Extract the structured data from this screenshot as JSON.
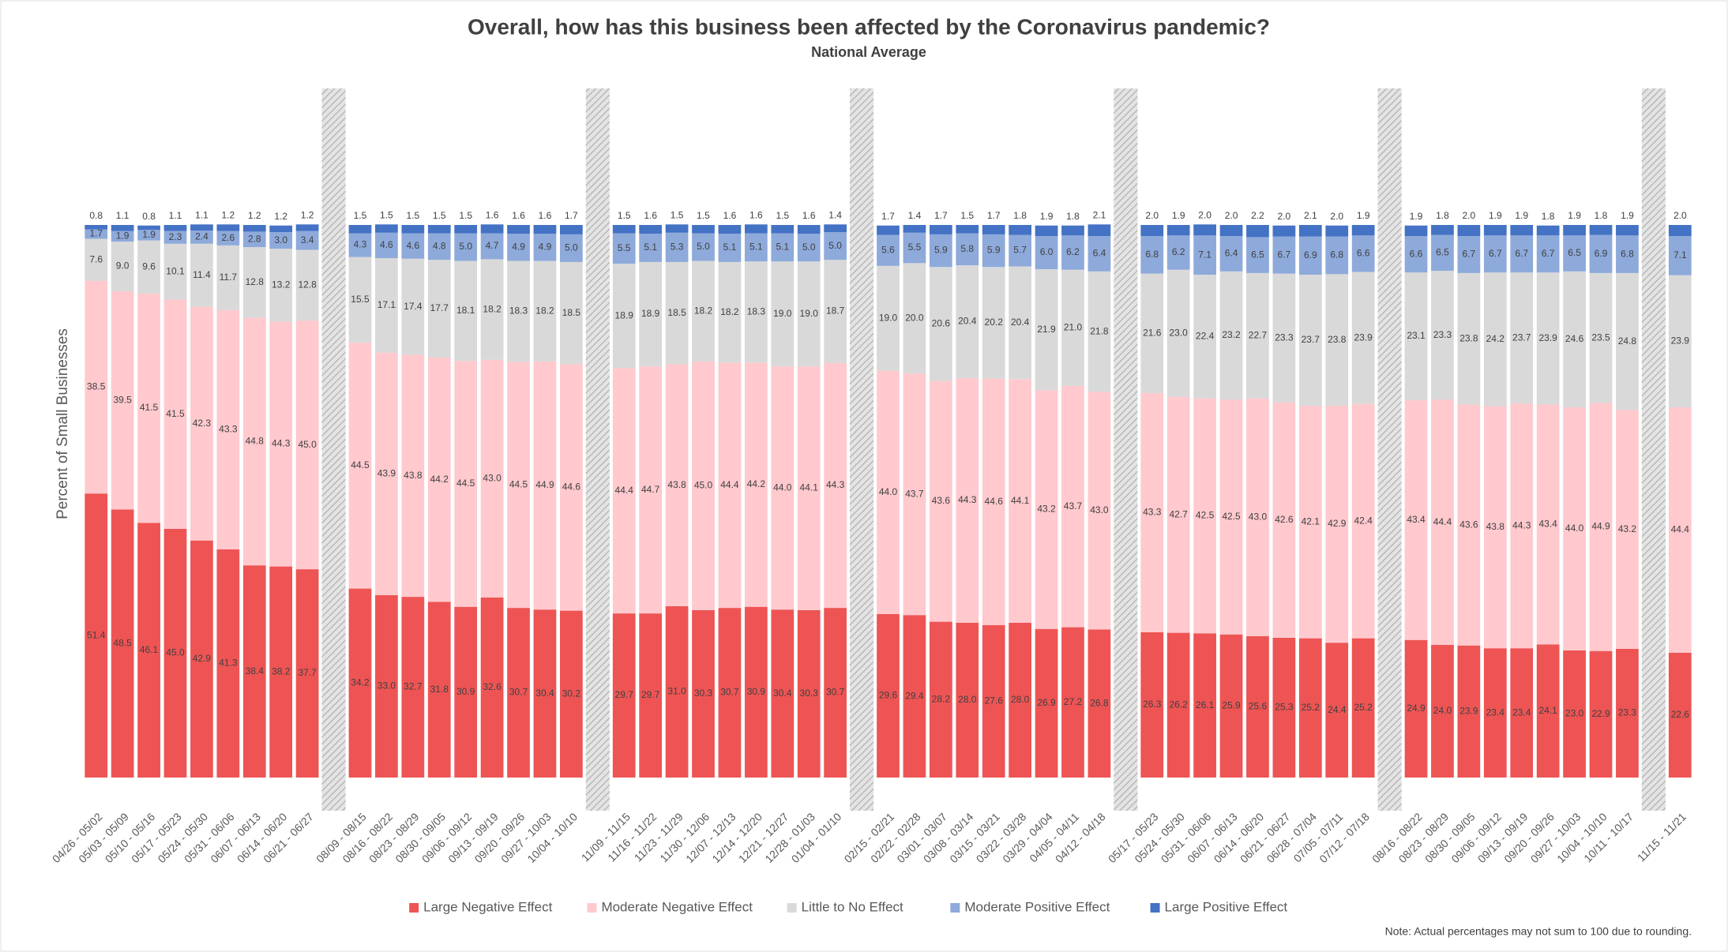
{
  "chart_data": {
    "type": "bar",
    "stacked": true,
    "title": "Overall, how has this business been affected by the Coronavirus pandemic?",
    "subtitle": "National Average",
    "ylabel": "Percent of Small Businesses",
    "note": "Note: Actual percentages may not sum to 100 due to rounding.",
    "ylim": [
      0,
      100
    ],
    "legend": "bottom",
    "categories": [
      "04/26 - 05/02",
      "05/03 - 05/09",
      "05/10 - 05/16",
      "05/17 - 05/23",
      "05/24 - 05/30",
      "05/31 - 06/06",
      "06/07 - 06/13",
      "06/14 - 06/20",
      "06/21 - 06/27",
      null,
      "08/09 - 08/15",
      "08/16 - 08/22",
      "08/23 - 08/29",
      "08/30 - 09/05",
      "09/06 - 09/12",
      "09/13 - 09/19",
      "09/20 - 09/26",
      "09/27 - 10/03",
      "10/04 - 10/10",
      null,
      "11/09 - 11/15",
      "11/16 - 11/22",
      "11/23 - 11/29",
      "11/30 - 12/06",
      "12/07 - 12/13",
      "12/14 - 12/20",
      "12/21 - 12/27",
      "12/28 - 01/03",
      "01/04 - 01/10",
      null,
      "02/15 - 02/21",
      "02/22 - 02/28",
      "03/01 - 03/07",
      "03/08 - 03/14",
      "03/15 - 03/21",
      "03/22 - 03/28",
      "03/29 - 04/04",
      "04/05 - 04/11",
      "04/12 - 04/18",
      null,
      "05/17 - 05/23",
      "05/24 - 05/30",
      "05/31 - 06/06",
      "06/07 - 06/13",
      "06/14 - 06/20",
      "06/21 - 06/27",
      "06/28 - 07/04",
      "07/05 - 07/11",
      "07/12 - 07/18",
      null,
      "08/16 - 08/22",
      "08/23 - 08/29",
      "08/30 - 09/05",
      "09/06 - 09/12",
      "09/13 - 09/19",
      "09/20 - 09/26",
      "09/27 - 10/03",
      "10/04 - 10/10",
      "10/11 - 10/17",
      null,
      "11/15 - 11/21"
    ],
    "series": [
      {
        "name": "Large Negative Effect",
        "color": "#ee5454",
        "values": [
          51.4,
          48.5,
          46.1,
          45.0,
          42.9,
          41.3,
          38.4,
          38.2,
          37.7,
          null,
          34.2,
          33.0,
          32.7,
          31.8,
          30.9,
          32.6,
          30.7,
          30.4,
          30.2,
          null,
          29.7,
          29.7,
          31.0,
          30.3,
          30.7,
          30.9,
          30.4,
          30.3,
          30.7,
          null,
          29.6,
          29.4,
          28.2,
          28.0,
          27.6,
          28.0,
          26.9,
          27.2,
          26.8,
          null,
          26.3,
          26.2,
          26.1,
          25.9,
          25.6,
          25.3,
          25.2,
          24.4,
          25.2,
          null,
          24.9,
          24.0,
          23.9,
          23.4,
          23.4,
          24.1,
          23.0,
          22.9,
          23.3,
          null,
          22.6
        ],
        "value_labels": [
          "51.4",
          "48.5",
          "46.1",
          "45.0",
          "42.9",
          "41.3",
          "38.4",
          "38.2",
          "37.7",
          null,
          "34.2",
          "33.0",
          "32.7",
          "31.8",
          "30.9",
          "32.6",
          "30.7",
          "30.4",
          "30.2",
          null,
          "29.7",
          "29.7",
          "31.0",
          "30.3",
          "30.7",
          "30.9",
          "30.4",
          "30.3",
          "30.7",
          null,
          "29.6",
          "29.4",
          "28.2",
          "28.0",
          "27.6",
          "28.0",
          "26.9",
          "27.2",
          "26.8",
          null,
          "26.3",
          "26.2",
          "26.1",
          "25.9",
          "25.6",
          "25.3",
          "25.2",
          "24.4",
          "25.2",
          null,
          "24.9",
          "24.0",
          "23.9",
          "23.4",
          "23.4",
          "24.1",
          "23.0",
          "22.9",
          "23.3",
          null,
          "22.6"
        ]
      },
      {
        "name": "Moderate Negative Effect",
        "color": "#ffc9ce",
        "values": [
          38.5,
          39.5,
          41.5,
          41.5,
          42.3,
          43.3,
          44.8,
          44.3,
          45.0,
          null,
          44.5,
          43.9,
          43.8,
          44.2,
          44.5,
          43.0,
          44.5,
          44.9,
          44.6,
          null,
          44.4,
          44.7,
          43.8,
          45.0,
          44.4,
          44.2,
          44.0,
          44.1,
          44.3,
          null,
          44.0,
          43.7,
          43.6,
          44.3,
          44.6,
          44.1,
          43.2,
          43.7,
          43.0,
          null,
          43.3,
          42.7,
          42.5,
          42.5,
          43.0,
          42.6,
          42.1,
          42.9,
          42.4,
          null,
          43.4,
          44.4,
          43.6,
          43.8,
          44.3,
          43.4,
          44.0,
          44.9,
          43.2,
          null,
          44.4
        ],
        "value_labels": [
          "38.5",
          "39.5",
          "41.5",
          "41.5",
          "42.3",
          "43.3",
          "44.8",
          "44.3",
          "45.0",
          null,
          "44.5",
          "43.9",
          "43.8",
          "44.2",
          "44.5",
          "43.0",
          "44.5",
          "44.9",
          "44.6",
          null,
          "44.4",
          "44.7",
          "43.8",
          "45.0",
          "44.4",
          "44.2",
          "44.0",
          "44.1",
          "44.3",
          null,
          "44.0",
          "43.7",
          "43.6",
          "44.3",
          "44.6",
          "44.1",
          "43.2",
          "43.7",
          "43.0",
          null,
          "43.3",
          "42.7",
          "42.5",
          "42.5",
          "43.0",
          "42.6",
          "42.1",
          "42.9",
          "42.4",
          null,
          "43.4",
          "44.4",
          "43.6",
          "43.8",
          "44.3",
          "43.4",
          "44.0",
          "44.9",
          "43.2",
          null,
          "44.4"
        ]
      },
      {
        "name": "Little to No Effect",
        "color": "#d9d9d9",
        "values": [
          7.6,
          9.0,
          9.6,
          10.1,
          11.4,
          11.7,
          12.8,
          13.2,
          12.8,
          null,
          15.5,
          17.1,
          17.4,
          17.7,
          18.1,
          18.2,
          18.3,
          18.2,
          18.5,
          null,
          18.9,
          18.9,
          18.5,
          18.2,
          18.2,
          18.3,
          19.0,
          19.0,
          18.7,
          null,
          19.0,
          20.0,
          20.6,
          20.4,
          20.2,
          20.4,
          21.9,
          21.0,
          21.8,
          null,
          21.6,
          23.0,
          22.4,
          23.2,
          22.7,
          23.3,
          23.7,
          23.8,
          23.9,
          null,
          23.1,
          23.3,
          23.8,
          24.2,
          23.7,
          23.9,
          24.6,
          23.5,
          24.8,
          null,
          23.9
        ],
        "value_labels": [
          "7.6",
          "9.0",
          "9.6",
          "10.1",
          "11.4",
          "11.7",
          "12.8",
          "13.2",
          "12.8",
          null,
          "15.5",
          "17.1",
          "17.4",
          "17.7",
          "18.1",
          "18.2",
          "18.3",
          "18.2",
          "18.5",
          null,
          "18.9",
          "18.9",
          "18.5",
          "18.2",
          "18.2",
          "18.3",
          "19.0",
          "19.0",
          "18.7",
          null,
          "19.0",
          "20.0",
          "20.6",
          "20.4",
          "20.2",
          "20.4",
          "21.9",
          "21.0",
          "21.8",
          null,
          "21.6",
          "23.0",
          "22.4",
          "23.2",
          "22.7",
          "23.3",
          "23.7",
          "23.8",
          "23.9",
          null,
          "23.1",
          "23.3",
          "23.8",
          "24.2",
          "23.7",
          "23.9",
          "24.6",
          "23.5",
          "24.8",
          null,
          "23.9"
        ]
      },
      {
        "name": "Moderate Positive Effect",
        "color": "#8eaadb",
        "values": [
          1.7,
          1.9,
          1.9,
          2.3,
          2.4,
          2.6,
          2.8,
          3.0,
          3.4,
          null,
          4.3,
          4.6,
          4.6,
          4.8,
          5.0,
          4.7,
          4.9,
          4.9,
          5.0,
          null,
          5.5,
          5.1,
          5.3,
          5.0,
          5.1,
          5.1,
          5.1,
          5.0,
          5.0,
          null,
          5.6,
          5.5,
          5.9,
          5.8,
          5.9,
          5.7,
          6.0,
          6.2,
          6.4,
          null,
          6.8,
          6.2,
          7.1,
          6.4,
          6.5,
          6.7,
          6.9,
          6.8,
          6.6,
          null,
          6.6,
          6.5,
          6.7,
          6.7,
          6.7,
          6.7,
          6.5,
          6.9,
          6.8,
          null,
          7.1
        ],
        "value_labels": [
          "1.7",
          "1.9",
          "1.9",
          "2.3",
          "2.4",
          "2.6",
          "2.8",
          "3.0",
          "3.4",
          null,
          "4.3",
          "4.6",
          "4.6",
          "4.8",
          "5.0",
          "4.7",
          "4.9",
          "4.9",
          "5.0",
          null,
          "5.5",
          "5.1",
          "5.3",
          "5.0",
          "5.1",
          "5.1",
          "5.1",
          "5.0",
          "5.0",
          null,
          "5.6",
          "5.5",
          "5.9",
          "5.8",
          "5.9",
          "5.7",
          "6.0",
          "6.2",
          "6.4",
          null,
          "6.8",
          "6.2",
          "7.1",
          "6.4",
          "6.5",
          "6.7",
          "6.9",
          "6.8",
          "6.6",
          null,
          "6.6",
          "6.5",
          "6.7",
          "6.7",
          "6.7",
          "6.7",
          "6.5",
          "6.9",
          "6.8",
          null,
          "7.1"
        ]
      },
      {
        "name": "Large Positive Effect",
        "color": "#4472c4",
        "values": [
          0.8,
          1.1,
          0.8,
          1.1,
          1.1,
          1.2,
          1.2,
          1.2,
          1.2,
          null,
          1.5,
          1.5,
          1.5,
          1.5,
          1.5,
          1.6,
          1.6,
          1.6,
          1.7,
          null,
          1.5,
          1.6,
          1.5,
          1.5,
          1.6,
          1.6,
          1.5,
          1.6,
          1.4,
          null,
          1.7,
          1.4,
          1.7,
          1.5,
          1.7,
          1.8,
          1.9,
          1.8,
          2.1,
          null,
          2.0,
          1.9,
          2.0,
          2.0,
          2.2,
          2.0,
          2.1,
          2.0,
          1.9,
          null,
          1.9,
          1.8,
          2.0,
          1.9,
          1.9,
          1.8,
          1.9,
          1.8,
          1.9,
          null,
          2.0
        ],
        "value_labels": [
          "0.8",
          "1.1",
          "0.8",
          "1.1",
          "1.1",
          "1.2",
          "1.2",
          "1.2",
          "1.2",
          null,
          "1.5",
          "1.5",
          "1.5",
          "1.5",
          "1.5",
          "1.6",
          "1.6",
          "1.6",
          "1.7",
          null,
          "1.5",
          "1.6",
          "1.5",
          "1.5",
          "1.6",
          "1.6",
          "1.5",
          "1.6",
          "1.4",
          null,
          "1.7",
          "1.4",
          "1.7",
          "1.5",
          "1.7",
          "1.8",
          "1.9",
          "1.8",
          "2.1",
          null,
          "2.0",
          "1.9",
          "2.0",
          "2.0",
          "2.2",
          "2.0",
          "2.1",
          "2.0",
          "1.9",
          null,
          "1.9",
          "1.8",
          "2.0",
          "1.9",
          "1.9",
          "1.8",
          "1.9",
          "1.8",
          "1.9",
          null,
          "2.0"
        ]
      }
    ]
  }
}
